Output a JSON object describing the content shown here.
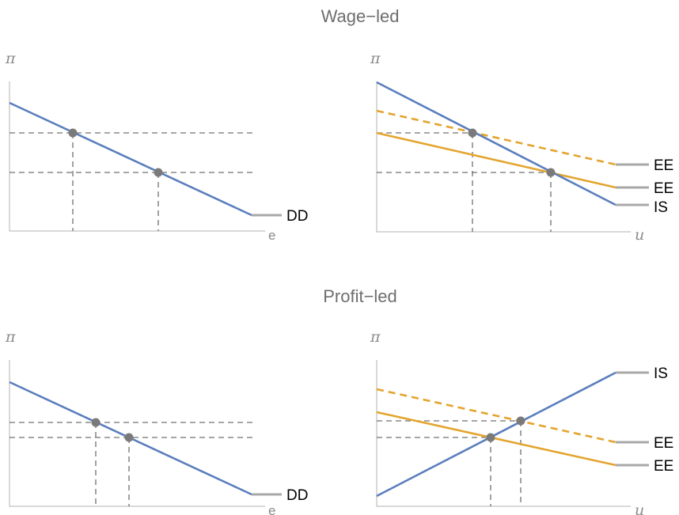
{
  "titles": {
    "wage_led": "Wage−led",
    "profit_led": "Profit−led"
  },
  "axis_labels": {
    "pi": "π",
    "e": "e",
    "u": "u"
  },
  "curve_labels": {
    "DD": "DD",
    "EE": "EE",
    "IS": "IS"
  },
  "colors": {
    "blue": "#5b7fbd",
    "orange": "#e3a52e",
    "guide": "#707070",
    "point": "#7a7a7a",
    "axis": "#b3b3b3"
  }
}
